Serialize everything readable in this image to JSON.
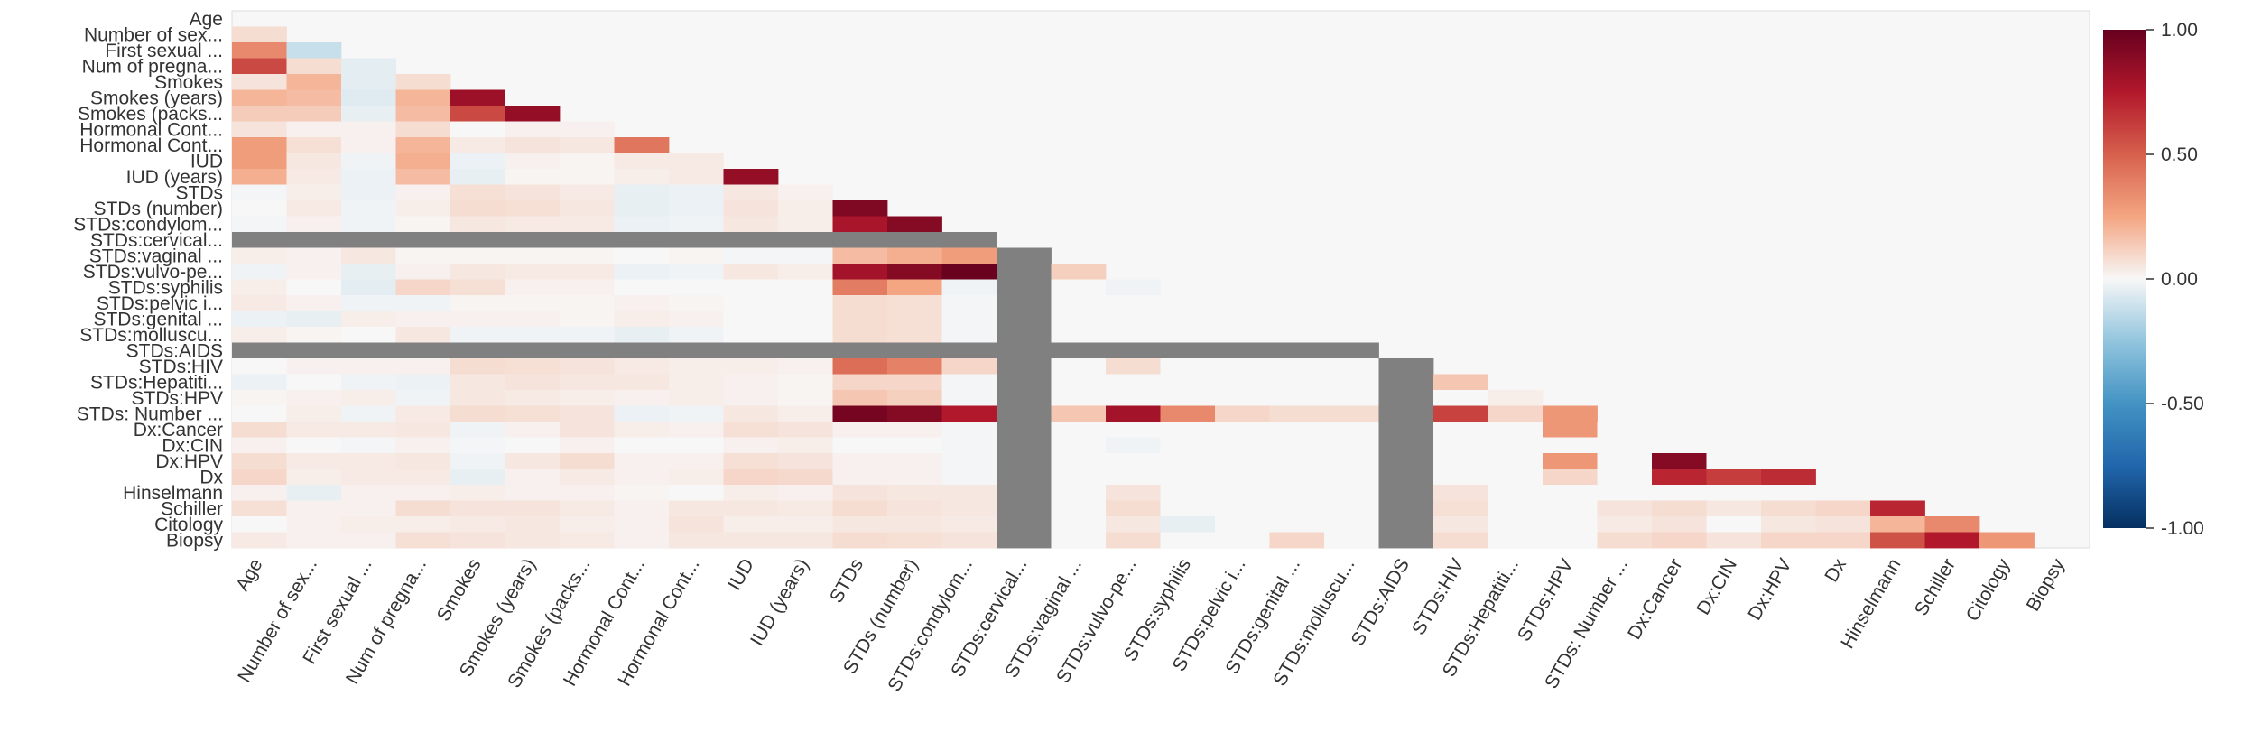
{
  "chart_data": {
    "type": "heatmap",
    "title": "",
    "xlabel": "",
    "ylabel": "",
    "labels": [
      "Age",
      "Number of sex...",
      "First sexual ...",
      "Num of pregna...",
      "Smokes",
      "Smokes (years)",
      "Smokes (packs...",
      "Hormonal Cont...",
      "Hormonal Cont...",
      "IUD",
      "IUD (years)",
      "STDs",
      "STDs (number)",
      "STDs:condylom...",
      "STDs:cervical...",
      "STDs:vaginal ...",
      "STDs:vulvo-pe...",
      "STDs:syphilis",
      "STDs:pelvic i...",
      "STDs:genital ...",
      "STDs:molluscu...",
      "STDs:AIDS",
      "STDs:HIV",
      "STDs:Hepatiti...",
      "STDs:HPV",
      "STDs: Number ...",
      "Dx:Cancer",
      "Dx:CIN",
      "Dx:HPV",
      "Dx",
      "Hinselmann",
      "Schiller",
      "Citology",
      "Biopsy"
    ],
    "matrix_shape": "lower-triangular (cell in row i, column j shown for j < i)",
    "values_by_row": [
      [],
      [
        0.08
      ],
      [
        0.35,
        -0.12
      ],
      [
        0.58,
        0.08,
        -0.05
      ],
      [
        0.06,
        0.2,
        -0.05,
        0.08
      ],
      [
        0.2,
        0.18,
        -0.06,
        0.2,
        0.82
      ],
      [
        0.13,
        0.13,
        -0.04,
        0.18,
        0.58,
        0.85
      ],
      [
        0.06,
        0.02,
        0.02,
        0.08,
        0.0,
        0.02,
        0.02
      ],
      [
        0.28,
        0.07,
        0.02,
        0.2,
        0.04,
        0.06,
        0.05,
        0.42
      ],
      [
        0.28,
        0.05,
        -0.02,
        0.22,
        -0.03,
        0.02,
        0.01,
        0.04,
        0.04
      ],
      [
        0.22,
        0.04,
        -0.03,
        0.18,
        -0.04,
        0.01,
        0.01,
        0.03,
        0.04,
        0.85
      ],
      [
        -0.01,
        0.03,
        -0.03,
        0.02,
        0.07,
        0.06,
        0.04,
        -0.04,
        -0.03,
        0.05,
        0.02
      ],
      [
        0.0,
        0.04,
        -0.02,
        0.03,
        0.08,
        0.07,
        0.05,
        -0.04,
        -0.03,
        0.06,
        0.03,
        0.92
      ],
      [
        -0.01,
        0.02,
        -0.02,
        0.01,
        0.05,
        0.04,
        0.04,
        -0.03,
        -0.02,
        0.05,
        0.03,
        0.78,
        0.9
      ],
      [
        null,
        null,
        null,
        null,
        null,
        null,
        null,
        null,
        null,
        null,
        null,
        null,
        null,
        null
      ],
      [
        0.03,
        0.02,
        0.05,
        0.01,
        0.01,
        0.01,
        0.01,
        0.0,
        0.01,
        -0.01,
        -0.01,
        0.18,
        0.22,
        0.28,
        null
      ],
      [
        -0.02,
        0.02,
        -0.04,
        0.02,
        0.05,
        0.04,
        0.04,
        -0.03,
        -0.02,
        0.05,
        0.03,
        0.8,
        0.9,
        0.99,
        null,
        0.12
      ],
      [
        0.03,
        0.0,
        -0.05,
        0.1,
        0.07,
        0.02,
        0.02,
        0.0,
        0.0,
        0.0,
        0.0,
        0.4,
        0.25,
        -0.02,
        null,
        0.0,
        -0.02
      ],
      [
        0.04,
        0.02,
        -0.02,
        -0.02,
        0.01,
        0.01,
        0.01,
        0.02,
        0.01,
        0.0,
        0.0,
        0.08,
        0.07,
        -0.01,
        null,
        0.0,
        0.0,
        0.0
      ],
      [
        -0.03,
        -0.04,
        0.03,
        0.02,
        0.02,
        0.02,
        0.01,
        0.03,
        0.02,
        0.0,
        0.0,
        0.08,
        0.07,
        -0.01,
        null,
        0.0,
        0.0,
        0.0,
        0.0
      ],
      [
        0.03,
        0.01,
        0.0,
        0.05,
        -0.02,
        -0.02,
        -0.02,
        -0.04,
        -0.02,
        0.0,
        0.0,
        0.08,
        0.07,
        -0.01,
        null,
        0.0,
        0.0,
        0.0,
        0.0,
        0.0
      ],
      [
        null,
        null,
        null,
        null,
        null,
        null,
        null,
        null,
        null,
        null,
        null,
        null,
        null,
        null,
        null,
        null,
        null,
        null,
        null,
        null,
        null
      ],
      [
        0.0,
        0.02,
        0.02,
        0.02,
        0.08,
        0.07,
        0.06,
        0.04,
        0.03,
        0.03,
        0.02,
        0.45,
        0.38,
        0.1,
        null,
        0.0,
        0.08,
        0.0,
        0.0,
        0.0,
        0.0,
        null
      ],
      [
        -0.03,
        0.0,
        -0.02,
        -0.03,
        0.05,
        0.06,
        0.05,
        0.05,
        0.03,
        0.02,
        0.01,
        0.1,
        0.1,
        -0.01,
        null,
        0.0,
        0.0,
        0.0,
        0.0,
        0.0,
        0.0,
        null,
        0.15
      ],
      [
        0.01,
        0.02,
        0.03,
        -0.02,
        0.05,
        0.04,
        0.03,
        0.02,
        0.03,
        0.02,
        0.01,
        0.15,
        0.12,
        -0.01,
        null,
        0.0,
        0.0,
        0.0,
        0.0,
        0.0,
        0.0,
        null,
        0.0,
        0.03
      ],
      [
        0.0,
        0.03,
        -0.02,
        0.04,
        0.08,
        0.07,
        0.06,
        -0.03,
        -0.02,
        0.05,
        0.03,
        0.95,
        0.9,
        0.75,
        null,
        0.15,
        0.8,
        0.35,
        0.1,
        0.08,
        0.08,
        null,
        0.6,
        0.1,
        0.3
      ],
      [
        0.08,
        0.04,
        0.04,
        0.05,
        -0.02,
        0.02,
        0.06,
        0.03,
        0.02,
        0.07,
        0.06,
        0.02,
        0.02,
        -0.01,
        null,
        0.0,
        0.0,
        0.0,
        0.0,
        0.0,
        0.0,
        null,
        0.0,
        0.0,
        0.3,
        0.0
      ],
      [
        0.02,
        0.0,
        -0.01,
        0.02,
        -0.01,
        0.0,
        0.02,
        0.0,
        0.0,
        0.02,
        0.03,
        0.0,
        0.0,
        -0.01,
        null,
        0.0,
        -0.02,
        0.0,
        0.0,
        0.0,
        0.0,
        null,
        0.0,
        0.0,
        0.0,
        0.0,
        0.0
      ],
      [
        0.08,
        0.04,
        0.04,
        0.05,
        -0.02,
        0.05,
        0.08,
        0.02,
        0.02,
        0.07,
        0.06,
        0.02,
        0.02,
        -0.01,
        null,
        0.0,
        0.0,
        0.0,
        0.0,
        0.0,
        0.0,
        null,
        0.0,
        0.0,
        0.3,
        0.0,
        0.9,
        0.0
      ],
      [
        0.1,
        0.03,
        0.04,
        0.04,
        -0.04,
        0.02,
        0.04,
        0.02,
        0.03,
        0.1,
        0.09,
        0.02,
        0.02,
        -0.01,
        null,
        0.0,
        0.0,
        0.0,
        0.0,
        0.0,
        0.0,
        null,
        0.0,
        0.0,
        0.1,
        0.0,
        0.7,
        0.62,
        0.68
      ],
      [
        0.02,
        -0.04,
        0.02,
        0.02,
        0.03,
        0.02,
        0.02,
        0.01,
        0.0,
        0.03,
        0.02,
        0.06,
        0.05,
        0.05,
        null,
        0.0,
        0.06,
        0.0,
        0.0,
        0.0,
        0.0,
        null,
        0.06,
        0.0,
        0.0,
        0.0,
        0.0,
        0.0,
        0.0,
        0.0
      ],
      [
        0.07,
        0.02,
        0.02,
        0.08,
        0.06,
        0.06,
        0.04,
        0.02,
        0.05,
        0.05,
        0.04,
        0.08,
        0.06,
        0.05,
        null,
        0.0,
        0.08,
        0.0,
        0.0,
        0.0,
        0.0,
        null,
        0.07,
        0.0,
        0.0,
        0.06,
        0.08,
        0.05,
        0.08,
        0.1,
        0.7
      ],
      [
        0.0,
        0.02,
        0.03,
        0.03,
        0.04,
        0.05,
        0.03,
        0.02,
        0.06,
        0.03,
        0.03,
        0.05,
        0.05,
        0.04,
        null,
        0.0,
        0.05,
        -0.04,
        0.0,
        0.0,
        0.0,
        null,
        0.05,
        0.0,
        0.0,
        0.04,
        0.06,
        0.0,
        0.05,
        0.06,
        0.2,
        0.35
      ],
      [
        0.04,
        0.02,
        0.02,
        0.07,
        0.06,
        0.05,
        0.04,
        0.02,
        0.05,
        0.05,
        0.05,
        0.08,
        0.07,
        0.06,
        null,
        0.0,
        0.08,
        0.0,
        0.0,
        0.1,
        0.0,
        null,
        0.08,
        0.0,
        0.0,
        0.08,
        0.1,
        0.06,
        0.1,
        0.1,
        0.55,
        0.75,
        0.3
      ]
    ],
    "colorbar": {
      "min": -1.0,
      "max": 1.0,
      "ticks": [
        "1.00",
        "0.50",
        "0.00",
        "-0.50",
        "-1.00"
      ]
    },
    "colors": {
      "missing": "#808080",
      "background": "#f7f7f7",
      "low": "#053061",
      "mid": "#f7f7f7",
      "high": "#67001f"
    }
  }
}
